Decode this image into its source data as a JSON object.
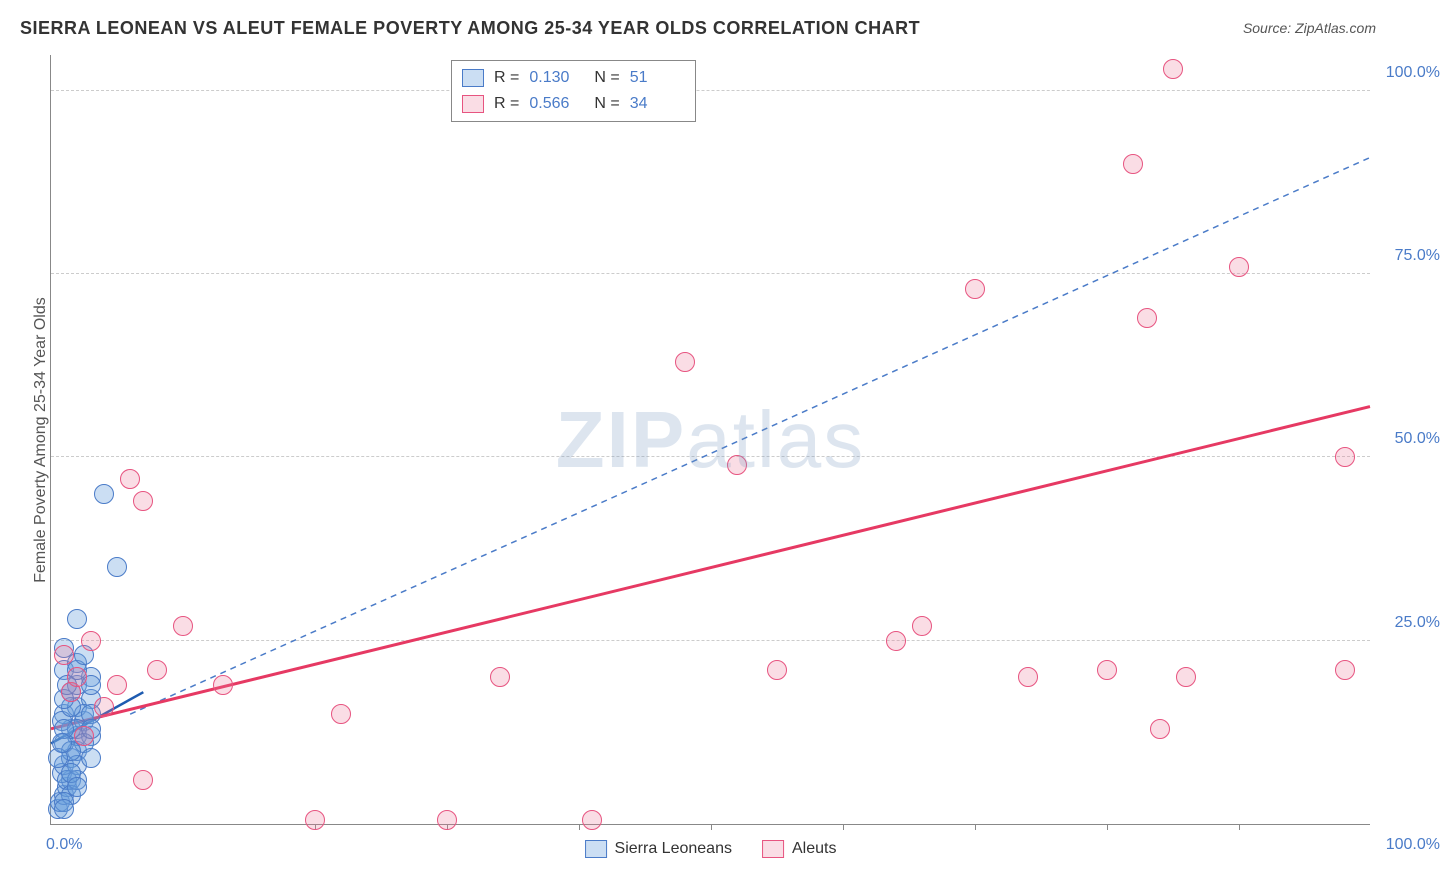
{
  "title": "SIERRA LEONEAN VS ALEUT FEMALE POVERTY AMONG 25-34 YEAR OLDS CORRELATION CHART",
  "source": "Source: ZipAtlas.com",
  "watermark_bold": "ZIP",
  "watermark_light": "atlas",
  "chart": {
    "type": "scatter",
    "y_axis_label": "Female Poverty Among 25-34 Year Olds",
    "xlim": [
      0,
      100
    ],
    "ylim": [
      0,
      105
    ],
    "xtick_labels": {
      "0": "0.0%",
      "100": "100.0%"
    },
    "ytick_positions": [
      25,
      50,
      75,
      100
    ],
    "ytick_labels": [
      "25.0%",
      "50.0%",
      "75.0%",
      "100.0%"
    ],
    "xtick_minor_positions": [
      20,
      30,
      40,
      50,
      60,
      70,
      80,
      90
    ],
    "grid_color": "#cccccc",
    "grid_dash": "4,4",
    "background_color": "#ffffff",
    "axis_color": "#888888",
    "tick_label_color": "#4a7bc8",
    "label_fontsize": 16,
    "title_fontsize": 18,
    "point_radius": 10,
    "series": [
      {
        "name": "Sierra Leoneans",
        "legend_label": "Sierra Leoneans",
        "marker_fill": "rgba(106,160,220,0.35)",
        "marker_stroke": "#4a7bc8",
        "trend_color": "#1e5bb0",
        "trend_dash": "none",
        "trend_width": 2.5,
        "R": "0.130",
        "N": "51",
        "trend": {
          "x1": 0,
          "y1": 11,
          "x2": 7,
          "y2": 18
        },
        "points": [
          [
            0.5,
            2
          ],
          [
            0.7,
            3
          ],
          [
            1,
            4
          ],
          [
            1.2,
            5
          ],
          [
            1.5,
            6
          ],
          [
            0.8,
            7
          ],
          [
            1,
            8
          ],
          [
            1.5,
            9
          ],
          [
            2,
            10
          ],
          [
            1,
            11
          ],
          [
            2,
            12
          ],
          [
            1.5,
            13
          ],
          [
            2.5,
            14
          ],
          [
            1,
            15
          ],
          [
            2,
            16
          ],
          [
            3,
            17
          ],
          [
            1.5,
            18
          ],
          [
            2,
            19
          ],
          [
            3,
            20
          ],
          [
            1,
            21
          ],
          [
            2,
            22
          ],
          [
            2.5,
            15
          ],
          [
            3,
            12
          ],
          [
            1.2,
            6
          ],
          [
            2,
            28
          ],
          [
            0.8,
            14
          ],
          [
            1.5,
            4
          ],
          [
            2,
            8
          ],
          [
            3,
            15
          ],
          [
            1,
            24
          ],
          [
            2,
            13
          ],
          [
            3,
            19
          ],
          [
            1.5,
            16
          ],
          [
            2,
            21
          ],
          [
            1,
            17
          ],
          [
            2.5,
            11
          ],
          [
            3,
            9
          ],
          [
            1,
            13
          ],
          [
            2,
            6
          ],
          [
            1.5,
            10
          ],
          [
            4,
            45
          ],
          [
            5,
            35
          ],
          [
            0.5,
            9
          ],
          [
            1,
            3
          ],
          [
            1.5,
            7
          ],
          [
            2,
            5
          ],
          [
            0.8,
            11
          ],
          [
            1.2,
            19
          ],
          [
            2.5,
            23
          ],
          [
            1,
            2
          ],
          [
            3,
            13
          ]
        ]
      },
      {
        "name": "Aleuts",
        "legend_label": "Aleuts",
        "marker_fill": "rgba(235,120,150,0.25)",
        "marker_stroke": "#e75480",
        "trend_color": "#e63963",
        "trend_dash": "none",
        "trend_width": 3,
        "R": "0.566",
        "N": "34",
        "trend": {
          "x1": 0,
          "y1": 13,
          "x2": 100,
          "y2": 57
        },
        "points": [
          [
            1,
            23
          ],
          [
            1.5,
            18
          ],
          [
            2,
            20
          ],
          [
            2.5,
            12
          ],
          [
            3,
            25
          ],
          [
            4,
            16
          ],
          [
            5,
            19
          ],
          [
            6,
            47
          ],
          [
            7,
            44
          ],
          [
            8,
            21
          ],
          [
            10,
            27
          ],
          [
            13,
            19
          ],
          [
            7,
            6
          ],
          [
            20,
            0.5
          ],
          [
            22,
            15
          ],
          [
            30,
            0.5
          ],
          [
            34,
            20
          ],
          [
            41,
            0.5
          ],
          [
            48,
            63
          ],
          [
            52,
            49
          ],
          [
            55,
            21
          ],
          [
            64,
            25
          ],
          [
            66,
            27
          ],
          [
            70,
            73
          ],
          [
            74,
            20
          ],
          [
            80,
            21
          ],
          [
            82,
            90
          ],
          [
            83,
            69
          ],
          [
            84,
            13
          ],
          [
            85,
            103
          ],
          [
            86,
            20
          ],
          [
            90,
            76
          ],
          [
            98,
            50
          ],
          [
            98,
            21
          ]
        ]
      }
    ],
    "reference_line": {
      "color": "#4a7bc8",
      "dash": "6,5",
      "width": 1.5,
      "x1": 6,
      "y1": 15,
      "x2": 100,
      "y2": 91
    }
  },
  "legend_top_labels": {
    "R": "R  =",
    "N": "N  ="
  },
  "legend_bottom": {
    "item1": "Sierra Leoneans",
    "item2": "Aleuts"
  }
}
